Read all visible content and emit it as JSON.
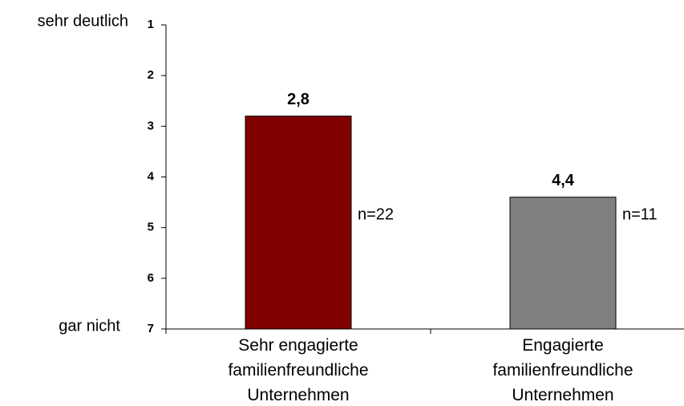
{
  "chart_data": {
    "type": "bar",
    "categories": [
      "Sehr engagierte familienfreundliche Unternehmen",
      "Engagierte familienfreundliche Unternehmen"
    ],
    "values": [
      2.8,
      4.4
    ],
    "value_labels": [
      "2,8",
      "4,4"
    ],
    "colors": [
      "#800000",
      "#808080"
    ],
    "annotations": [
      "n=22",
      "n=11"
    ],
    "y_axis_labels": {
      "top": "sehr deutlich",
      "bottom": "gar nicht"
    },
    "ylim": [
      7,
      1
    ],
    "yticks": [
      1,
      2,
      3,
      4,
      5,
      6,
      7
    ],
    "grid": false
  }
}
